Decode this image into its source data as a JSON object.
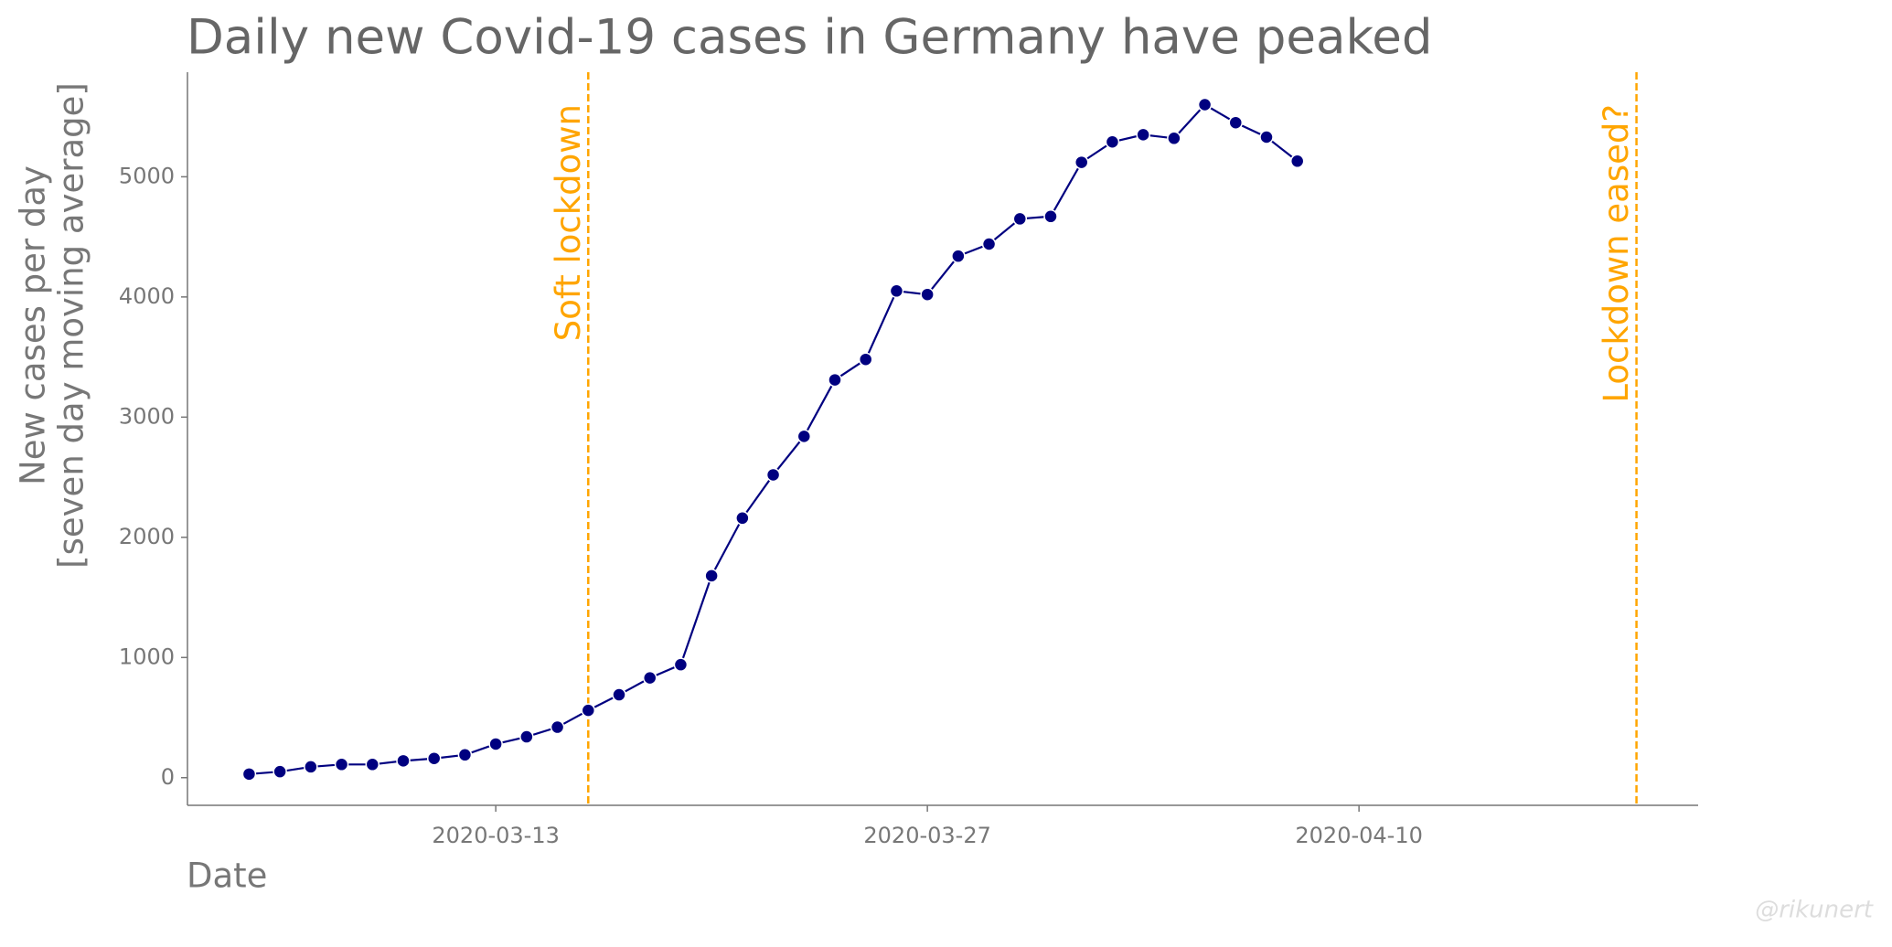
{
  "chart_data": {
    "type": "line",
    "title": "Daily new Covid-19 cases in Germany have peaked",
    "xlabel": "Date",
    "ylabel": [
      "New cases per day",
      "[seven day moving average]"
    ],
    "watermark": "@rikunert",
    "x": [
      "2020-03-05",
      "2020-03-06",
      "2020-03-07",
      "2020-03-08",
      "2020-03-09",
      "2020-03-10",
      "2020-03-11",
      "2020-03-12",
      "2020-03-13",
      "2020-03-14",
      "2020-03-15",
      "2020-03-16",
      "2020-03-17",
      "2020-03-18",
      "2020-03-19",
      "2020-03-20",
      "2020-03-21",
      "2020-03-22",
      "2020-03-23",
      "2020-03-24",
      "2020-03-25",
      "2020-03-26",
      "2020-03-27",
      "2020-03-28",
      "2020-03-29",
      "2020-03-30",
      "2020-03-31",
      "2020-04-01",
      "2020-04-02",
      "2020-04-03",
      "2020-04-04",
      "2020-04-05",
      "2020-04-06",
      "2020-04-07",
      "2020-04-08"
    ],
    "series": [
      {
        "name": "New cases per day",
        "color": "#000080",
        "values": [
          30,
          50,
          90,
          110,
          110,
          140,
          160,
          190,
          280,
          340,
          420,
          560,
          690,
          830,
          940,
          1680,
          2160,
          2520,
          2840,
          3310,
          3480,
          4050,
          4020,
          4340,
          4440,
          4650,
          4670,
          5120,
          5290,
          5350,
          5320,
          5600,
          5450,
          5330,
          5130
        ]
      }
    ],
    "annotations": [
      {
        "x": "2020-03-16",
        "label": "Soft lockdown"
      },
      {
        "x": "2020-04-19",
        "label": "Lockdown eased?"
      }
    ],
    "annotation_color": "#ffa500",
    "xlim": [
      "2020-03-03",
      "2020-04-21"
    ],
    "xticks": [
      "2020-03-13",
      "2020-03-27",
      "2020-04-10"
    ],
    "ylim": [
      -230,
      5870
    ],
    "yticks": [
      0,
      1000,
      2000,
      3000,
      4000,
      5000
    ],
    "grid": false
  }
}
